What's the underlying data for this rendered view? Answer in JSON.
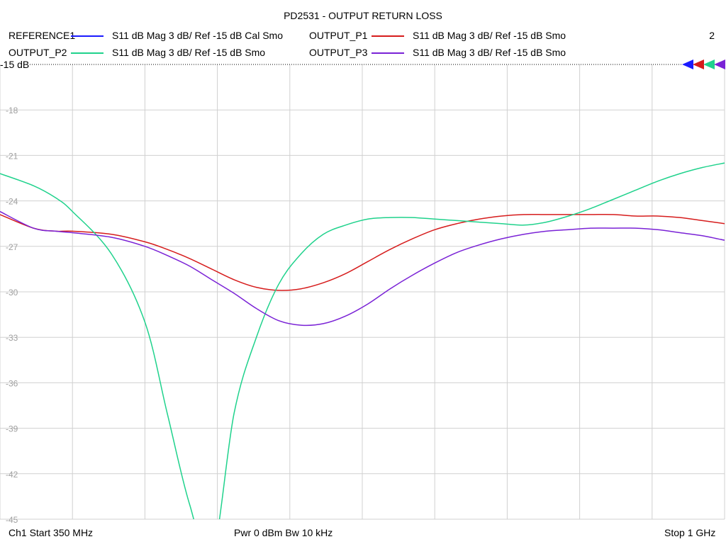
{
  "header": {
    "title": "PD2531 - OUTPUT RETURN LOSS",
    "channel_number": "2"
  },
  "legend": [
    {
      "name": "REFERENCE1",
      "desc": "S11  dB Mag  3 dB/ Ref -15 dB  Cal Smo",
      "color": "#1a1aff"
    },
    {
      "name": "OUTPUT_P1",
      "desc": "S11  dB Mag  3 dB/ Ref -15 dB  Smo",
      "color": "#d61c1c"
    },
    {
      "name": "OUTPUT_P2",
      "desc": "S11  dB Mag  3 dB/ Ref -15 dB  Smo",
      "color": "#1fd28c"
    },
    {
      "name": "OUTPUT_P3",
      "desc": "S11  dB Mag  3 dB/ Ref -15 dB  Smo",
      "color": "#7a22d6"
    }
  ],
  "footer": {
    "start": "Ch1  Start  350 MHz",
    "power": "Pwr  0 dBm  Bw  10 kHz",
    "stop": "Stop  1 GHz"
  },
  "chart_data": {
    "type": "line",
    "title": "PD2531 - OUTPUT RETURN LOSS",
    "xlim": [
      350,
      1000
    ],
    "ylim": [
      -45,
      -15
    ],
    "x_unit": "MHz",
    "y_unit": "dB",
    "ref_label": "-15 dB",
    "y_tick_labels": [
      "-15",
      "-18",
      "-21",
      "-24",
      "-27",
      "-30",
      "-33",
      "-36",
      "-39",
      "-42",
      "-45"
    ],
    "y_ticks": [
      -15,
      -18,
      -21,
      -24,
      -27,
      -30,
      -33,
      -36,
      -39,
      -42,
      -45
    ],
    "x_grid_count": 10,
    "grid": true,
    "x": [
      350,
      380,
      400,
      415,
      450,
      480,
      500,
      520,
      540,
      560,
      580,
      600,
      620,
      640,
      660,
      680,
      700,
      720,
      740,
      760,
      780,
      800,
      820,
      840,
      860,
      880,
      900,
      920,
      940,
      960,
      980,
      1000
    ],
    "series": [
      {
        "name": "OUTPUT_P1",
        "color": "#d61c1c",
        "values": [
          -24.9,
          -25.8,
          -26.0,
          -26.0,
          -26.2,
          -26.7,
          -27.2,
          -27.8,
          -28.5,
          -29.2,
          -29.7,
          -29.9,
          -29.8,
          -29.4,
          -28.8,
          -28.0,
          -27.2,
          -26.5,
          -25.9,
          -25.5,
          -25.2,
          -25.0,
          -24.9,
          -24.9,
          -24.9,
          -24.9,
          -24.9,
          -25.0,
          -25.0,
          -25.1,
          -25.3,
          -25.5
        ]
      },
      {
        "name": "OUTPUT_P2",
        "color": "#1fd28c",
        "values": [
          -22.2,
          -23.0,
          -23.8,
          -24.7,
          -27.5,
          -32.0,
          -38.0,
          -44.0,
          -47.5,
          -38.0,
          -33.0,
          -29.5,
          -27.5,
          -26.2,
          -25.6,
          -25.2,
          -25.1,
          -25.1,
          -25.2,
          -25.3,
          -25.4,
          -25.5,
          -25.6,
          -25.4,
          -25.0,
          -24.5,
          -23.9,
          -23.3,
          -22.7,
          -22.2,
          -21.8,
          -21.5
        ]
      },
      {
        "name": "OUTPUT_P3",
        "color": "#7a22d6",
        "values": [
          -24.7,
          -25.8,
          -26.0,
          -26.1,
          -26.4,
          -27.0,
          -27.6,
          -28.3,
          -29.2,
          -30.1,
          -31.1,
          -31.9,
          -32.2,
          -32.1,
          -31.6,
          -30.8,
          -29.8,
          -28.9,
          -28.1,
          -27.4,
          -26.9,
          -26.5,
          -26.2,
          -26.0,
          -25.9,
          -25.8,
          -25.8,
          -25.8,
          -25.9,
          -26.1,
          -26.3,
          -26.6
        ]
      }
    ],
    "marker_colors": [
      "#1a1aff",
      "#d61c1c",
      "#1fd28c",
      "#7a22d6"
    ]
  }
}
